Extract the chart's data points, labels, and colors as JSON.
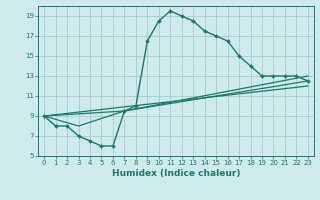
{
  "title": "",
  "xlabel": "Humidex (Indice chaleur)",
  "background_color": "#ceeaea",
  "grid_color": "#aacccc",
  "line_color": "#1a7a6e",
  "xlim": [
    -0.5,
    23.5
  ],
  "ylim": [
    5,
    20
  ],
  "xticks": [
    0,
    1,
    2,
    3,
    4,
    5,
    6,
    7,
    8,
    9,
    10,
    11,
    12,
    13,
    14,
    15,
    16,
    17,
    18,
    19,
    20,
    21,
    22,
    23
  ],
  "yticks": [
    5,
    7,
    9,
    11,
    13,
    15,
    17,
    19
  ],
  "lines": [
    {
      "x": [
        0,
        1,
        2,
        3,
        4,
        5,
        6,
        7,
        8,
        9,
        10,
        11,
        12,
        13,
        14,
        15,
        16,
        17,
        18,
        19,
        20,
        21,
        22,
        23
      ],
      "y": [
        9,
        8,
        8,
        7,
        6.5,
        6,
        6,
        9.5,
        10,
        16.5,
        18.5,
        19.5,
        19,
        18.5,
        17.5,
        17,
        16.5,
        15,
        14,
        13,
        13,
        13,
        13,
        12.5
      ],
      "marker": "D",
      "markersize": 2.0,
      "linewidth": 1.0
    },
    {
      "x": [
        0,
        3,
        7,
        23
      ],
      "y": [
        9,
        8,
        9.5,
        13
      ],
      "marker": false,
      "linewidth": 0.9
    },
    {
      "x": [
        0,
        7,
        23
      ],
      "y": [
        9,
        9.5,
        12.5
      ],
      "marker": false,
      "linewidth": 0.9
    },
    {
      "x": [
        0,
        23
      ],
      "y": [
        9,
        12
      ],
      "marker": false,
      "linewidth": 0.9
    }
  ]
}
